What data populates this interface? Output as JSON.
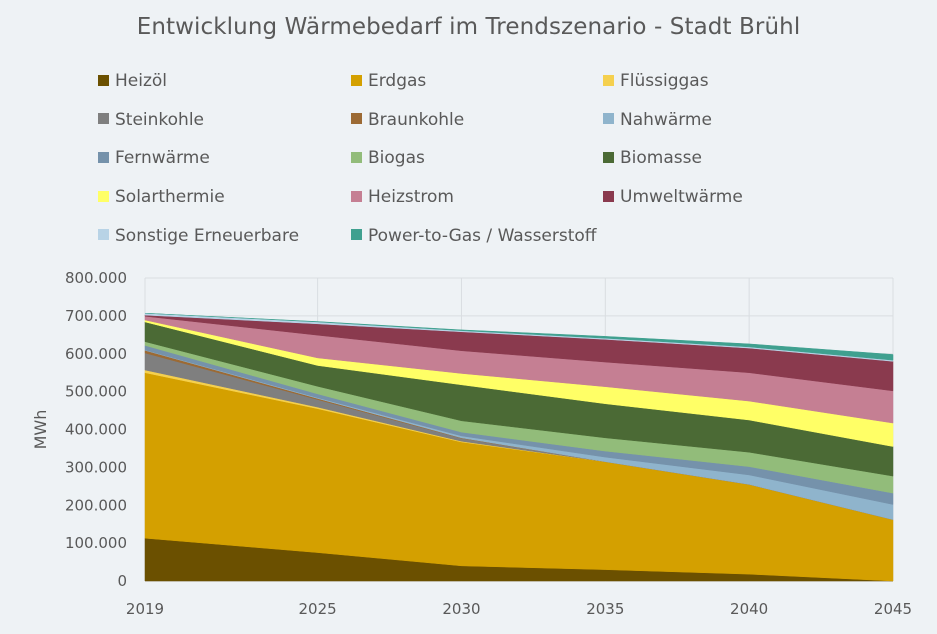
{
  "chart_data": {
    "type": "area",
    "stacked": true,
    "title": "Entwicklung Wärmebedarf im Trendszenario - Stadt Brühl",
    "xlabel": "",
    "ylabel": "MWh",
    "x": [
      2019,
      2025,
      2030,
      2035,
      2040,
      2045
    ],
    "x_tick_labels": [
      "2019",
      "2025",
      "2030",
      "2035",
      "2040",
      "2045"
    ],
    "ylim": [
      0,
      800000
    ],
    "y_tick_labels": [
      "0",
      "100.000",
      "200.000",
      "300.000",
      "400.000",
      "500.000",
      "600.000",
      "700.000",
      "800.000"
    ],
    "grid": true,
    "legend_position": "top",
    "series": [
      {
        "name": "Heizöl",
        "color": "#6b5000",
        "values": [
          113000,
          75000,
          40000,
          30000,
          18000,
          0
        ]
      },
      {
        "name": "Erdgas",
        "color": "#d4a000",
        "values": [
          437000,
          380000,
          327000,
          285000,
          237000,
          162000
        ]
      },
      {
        "name": "Flüssiggas",
        "color": "#f5d04e",
        "values": [
          7000,
          4000,
          2000,
          0,
          0,
          0
        ]
      },
      {
        "name": "Steinkohle",
        "color": "#7f7f7f",
        "values": [
          45000,
          20000,
          8000,
          0,
          0,
          0
        ]
      },
      {
        "name": "Braunkohle",
        "color": "#9c6a34",
        "values": [
          7000,
          3000,
          1000,
          0,
          0,
          0
        ]
      },
      {
        "name": "Nahwärme",
        "color": "#8fb4cc",
        "values": [
          1000,
          2000,
          5000,
          12000,
          25000,
          40000
        ]
      },
      {
        "name": "Fernwärme",
        "color": "#7592ab",
        "values": [
          12000,
          10000,
          10000,
          16000,
          22000,
          30000
        ]
      },
      {
        "name": "Biogas",
        "color": "#92bc7a",
        "values": [
          10000,
          20000,
          30000,
          35000,
          38000,
          45000
        ]
      },
      {
        "name": "Biomasse",
        "color": "#4b6a35",
        "values": [
          52000,
          55000,
          95000,
          90000,
          85000,
          78000
        ]
      },
      {
        "name": "Solarthermie",
        "color": "#ffff66",
        "values": [
          5000,
          20000,
          30000,
          45000,
          50000,
          62000
        ]
      },
      {
        "name": "Heizstrom",
        "color": "#c57f93",
        "values": [
          10000,
          60000,
          60000,
          65000,
          75000,
          85000
        ]
      },
      {
        "name": "Umweltwärme",
        "color": "#8a3a4e",
        "values": [
          3000,
          30000,
          50000,
          60000,
          65000,
          78000
        ]
      },
      {
        "name": "Sonstige Erneuerbare",
        "color": "#b8d3e6",
        "values": [
          5000,
          5000,
          3000,
          3000,
          3000,
          3000
        ]
      },
      {
        "name": "Power-to-Gas / Wasserstoff",
        "color": "#3fa08f",
        "values": [
          0,
          1000,
          2000,
          5000,
          8000,
          15000
        ]
      }
    ]
  }
}
